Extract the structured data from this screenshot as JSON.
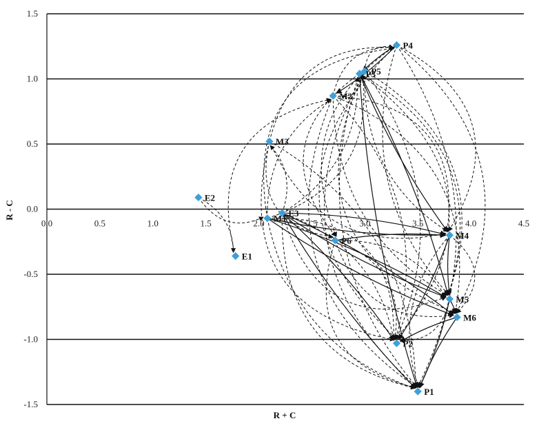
{
  "chart_data": {
    "type": "scatter",
    "title": "",
    "xlabel": "R + C",
    "ylabel": "R - C",
    "xlim": [
      0,
      4.5
    ],
    "ylim": [
      -1.5,
      1.5
    ],
    "x_ticks": [
      "0.0",
      "0.5",
      "1.0",
      "1.5",
      "2.0",
      "2.5",
      "3.0",
      "3.5",
      "4.0",
      "4.5"
    ],
    "y_ticks": [
      "1.5",
      "1.0",
      "0.5",
      "0.0",
      "-0.5",
      "-1.0",
      "-1.5"
    ],
    "horizontal_gridlines": true,
    "marker_color": "#3fa0d8",
    "points": [
      {
        "label": "P4",
        "x": 3.3,
        "y": 1.26
      },
      {
        "label": "P5",
        "x": 3.0,
        "y": 1.06
      },
      {
        "label": "P3",
        "x": 2.95,
        "y": 1.04
      },
      {
        "label": "M2",
        "x": 2.7,
        "y": 0.87
      },
      {
        "label": "M3",
        "x": 2.1,
        "y": 0.52
      },
      {
        "label": "E2",
        "x": 1.43,
        "y": 0.09
      },
      {
        "label": "E3",
        "x": 2.22,
        "y": -0.03
      },
      {
        "label": "M1",
        "x": 2.08,
        "y": -0.07
      },
      {
        "label": "P6",
        "x": 2.72,
        "y": -0.24
      },
      {
        "label": "M4",
        "x": 3.8,
        "y": -0.2
      },
      {
        "label": "E1",
        "x": 1.78,
        "y": -0.36
      },
      {
        "label": "M5",
        "x": 3.8,
        "y": -0.69
      },
      {
        "label": "M6",
        "x": 3.87,
        "y": -0.83
      },
      {
        "label": "P2",
        "x": 3.3,
        "y": -1.03
      },
      {
        "label": "P1",
        "x": 3.5,
        "y": -1.4
      }
    ],
    "dashed_links": [
      [
        "E2",
        "E1"
      ],
      [
        "E2",
        "M1"
      ],
      [
        "E1",
        "M2"
      ],
      [
        "E3",
        "M3"
      ],
      [
        "M3",
        "P4"
      ],
      [
        "M3",
        "P6"
      ],
      [
        "M1",
        "M2"
      ],
      [
        "M1",
        "P5"
      ],
      [
        "M1",
        "P4"
      ],
      [
        "E3",
        "P3"
      ],
      [
        "M2",
        "P4"
      ],
      [
        "M2",
        "P5"
      ],
      [
        "M2",
        "P2"
      ],
      [
        "M2",
        "P1"
      ],
      [
        "M2",
        "M4"
      ],
      [
        "M2",
        "M5"
      ],
      [
        "M2",
        "M6"
      ],
      [
        "M3",
        "P2"
      ],
      [
        "M3",
        "P1"
      ],
      [
        "M3",
        "M4"
      ],
      [
        "P5",
        "P4"
      ],
      [
        "P5",
        "M4"
      ],
      [
        "P5",
        "M5"
      ],
      [
        "P5",
        "M6"
      ],
      [
        "P5",
        "P2"
      ],
      [
        "P5",
        "P1"
      ],
      [
        "P4",
        "M4"
      ],
      [
        "P4",
        "M5"
      ],
      [
        "P4",
        "M6"
      ],
      [
        "P4",
        "P2"
      ],
      [
        "P4",
        "P1"
      ],
      [
        "P4",
        "P6"
      ],
      [
        "P3",
        "P2"
      ],
      [
        "P3",
        "P1"
      ],
      [
        "P3",
        "M5"
      ],
      [
        "P3",
        "P6"
      ],
      [
        "E3",
        "P2"
      ],
      [
        "E3",
        "P1"
      ],
      [
        "M1",
        "P2"
      ],
      [
        "M1",
        "P1"
      ],
      [
        "P6",
        "P2"
      ],
      [
        "P6",
        "P1"
      ],
      [
        "P6",
        "M5"
      ],
      [
        "P6",
        "M6"
      ],
      [
        "M4",
        "M6"
      ],
      [
        "M4",
        "P1"
      ],
      [
        "M5",
        "P2"
      ],
      [
        "E3",
        "M5"
      ]
    ],
    "solid_links": [
      [
        "E3",
        "M4"
      ],
      [
        "E3",
        "M5"
      ],
      [
        "E3",
        "M6"
      ],
      [
        "E3",
        "P1"
      ],
      [
        "E3",
        "P2"
      ],
      [
        "M1",
        "M4"
      ],
      [
        "M1",
        "M5"
      ],
      [
        "M1",
        "M6"
      ],
      [
        "P6",
        "M4"
      ],
      [
        "P3",
        "M4"
      ],
      [
        "P3",
        "M5"
      ],
      [
        "P4",
        "P3"
      ],
      [
        "P4",
        "M2"
      ],
      [
        "M4",
        "M5"
      ],
      [
        "M4",
        "P2"
      ],
      [
        "M6",
        "P1"
      ],
      [
        "M5",
        "P1"
      ],
      [
        "M6",
        "P2"
      ],
      [
        "M5",
        "M6"
      ],
      [
        "P3",
        "P1"
      ]
    ]
  }
}
